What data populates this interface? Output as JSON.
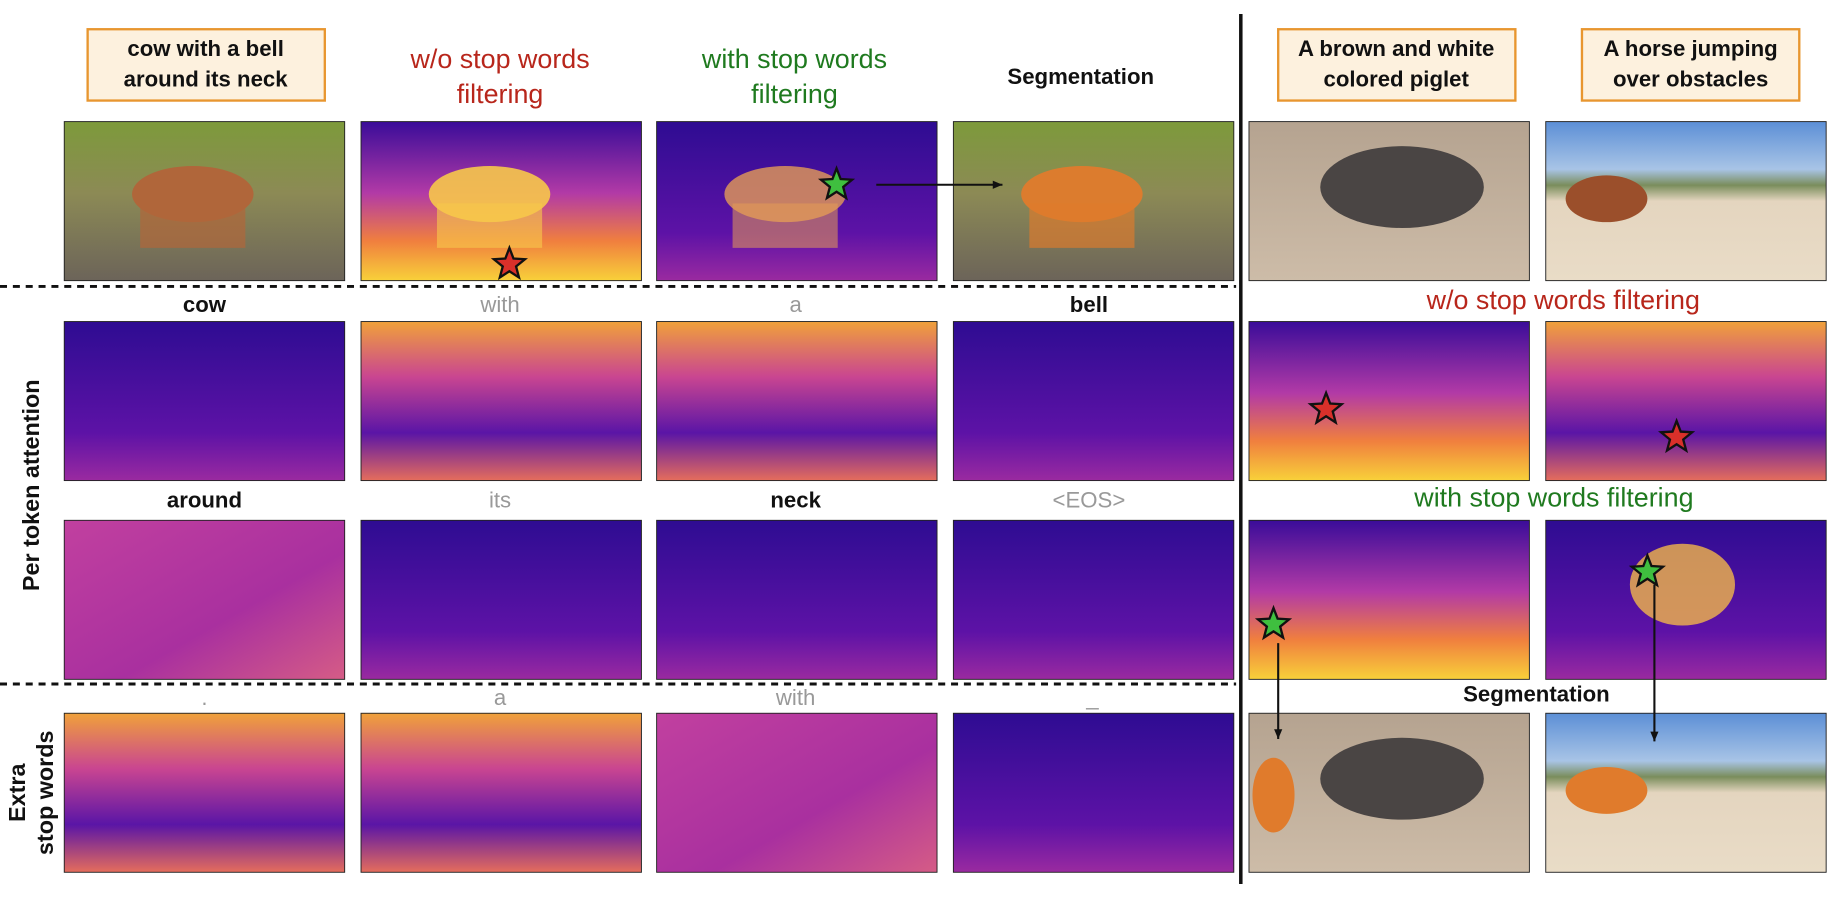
{
  "left_panel": {
    "caption": [
      "cow with a bell",
      "around its neck"
    ],
    "column_headers": [
      [
        "w/o stop words",
        "filtering"
      ],
      [
        "with stop words",
        "filtering"
      ],
      [
        "Segmentation"
      ]
    ],
    "token_rows": [
      [
        "cow",
        "with",
        "a",
        "bell"
      ],
      [
        "around",
        "its",
        "neck",
        "<EOS>"
      ]
    ],
    "extra_tokens": [
      ".",
      "a",
      "with",
      "_"
    ],
    "row_labels": {
      "per_token": "Per token attention",
      "extra": [
        "Extra",
        "stop words"
      ]
    }
  },
  "right_panel": {
    "captions": [
      [
        "A brown and white",
        "colored piglet"
      ],
      [
        "A horse jumping",
        "over obstacles"
      ]
    ],
    "row_headers": [
      "w/o stop words filtering",
      "with stop words filtering",
      "Segmentation"
    ]
  }
}
